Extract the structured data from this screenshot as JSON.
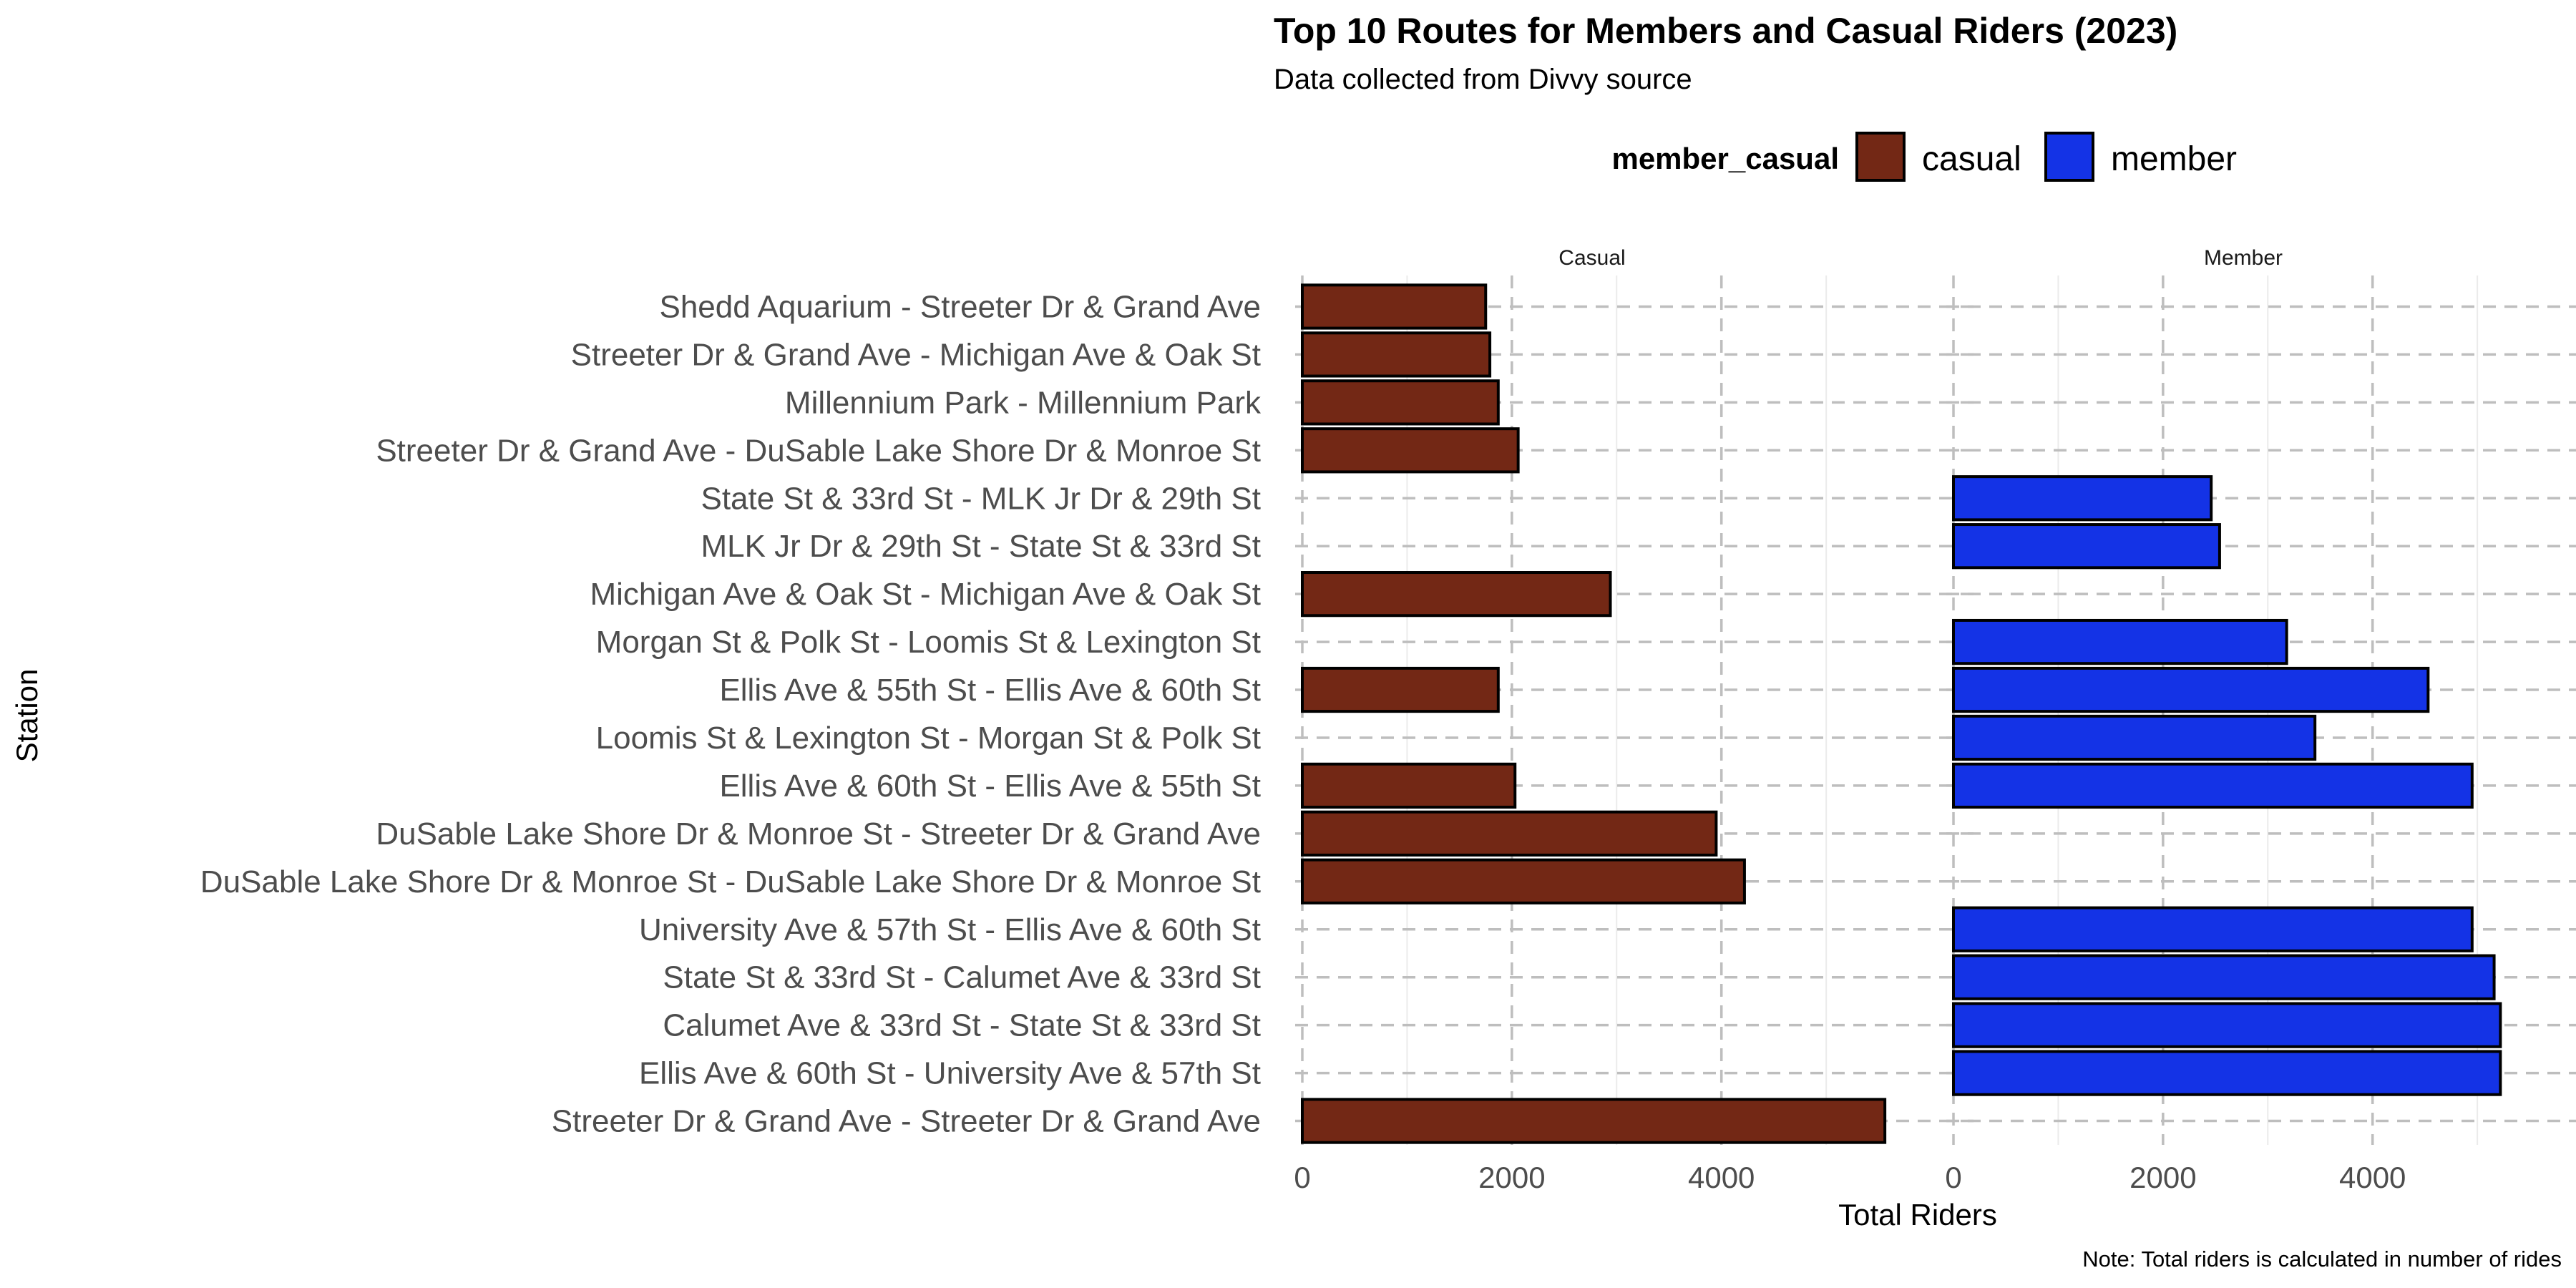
{
  "chart_data": {
    "type": "bar",
    "orientation": "horizontal",
    "title": "Top 10 Routes for Members and Casual Riders (2023)",
    "subtitle": "Data collected from Divvy source",
    "xlabel": "Total Riders",
    "ylabel": "Station",
    "caption": "Note: Total riders is calculated in number of rides",
    "xlim": [
      0,
      5600
    ],
    "xticks": [
      0,
      2000,
      4000
    ],
    "grid": true,
    "legend": {
      "title": "member_casual",
      "position": "top",
      "entries": [
        {
          "name": "casual",
          "color": "#732815"
        },
        {
          "name": "member",
          "color": "#1433E6"
        }
      ]
    },
    "categories": [
      "Shedd Aquarium - Streeter Dr & Grand Ave",
      "Streeter Dr & Grand Ave - Michigan Ave & Oak St",
      "Millennium Park - Millennium Park",
      "Streeter Dr & Grand Ave - DuSable Lake Shore Dr & Monroe St",
      "State St & 33rd St - MLK Jr Dr & 29th St",
      "MLK Jr Dr & 29th St - State St & 33rd St",
      "Michigan Ave & Oak St - Michigan Ave & Oak St",
      "Morgan St & Polk St - Loomis St & Lexington St",
      "Ellis Ave & 55th St - Ellis Ave & 60th St",
      "Loomis St & Lexington St - Morgan St & Polk St",
      "Ellis Ave & 60th St - Ellis Ave & 55th St",
      "DuSable Lake Shore Dr & Monroe St - Streeter Dr & Grand Ave",
      "DuSable Lake Shore Dr & Monroe St - DuSable Lake Shore Dr & Monroe St",
      "University Ave & 57th St - Ellis Ave & 60th St",
      "State St & 33rd St - Calumet Ave & 33rd St",
      "Calumet Ave & 33rd St - State St & 33rd St",
      "Ellis Ave & 60th St - University Ave & 57th St",
      "Streeter Dr & Grand Ave - Streeter Dr & Grand Ave"
    ],
    "facets": [
      {
        "label": "Casual",
        "series": "casual",
        "color": "#732815",
        "values": [
          1750,
          1790,
          1870,
          2060,
          null,
          null,
          2940,
          null,
          1870,
          null,
          2030,
          3950,
          4220,
          null,
          null,
          null,
          null,
          5560
        ]
      },
      {
        "label": "Member",
        "series": "member",
        "color": "#1433E6",
        "values": [
          null,
          null,
          null,
          null,
          2460,
          2540,
          null,
          3180,
          4530,
          3450,
          4950,
          null,
          null,
          4950,
          5160,
          5220,
          5220,
          null
        ]
      }
    ]
  }
}
